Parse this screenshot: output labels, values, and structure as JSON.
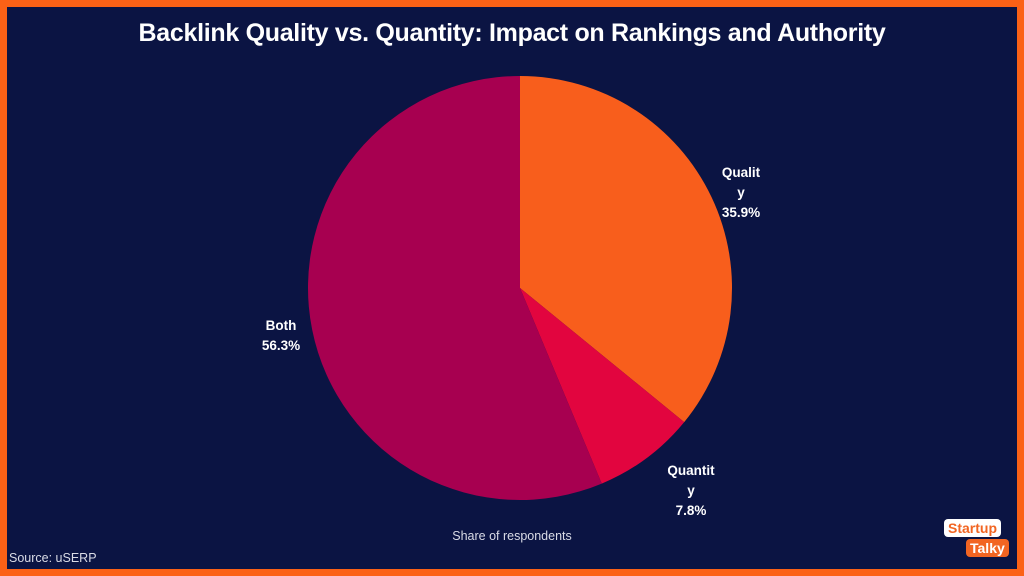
{
  "chart_data": {
    "type": "pie",
    "title": "Backlink Quality vs. Quantity: Impact on Rankings and Authority",
    "subtitle": "Share of respondents",
    "source": "Source: uSERP",
    "slices": [
      {
        "label": "Quality",
        "value": 35.9,
        "display": "35.9%",
        "color": "#f85e1c"
      },
      {
        "label": "Quantity",
        "value": 7.8,
        "display": "7.8%",
        "color": "#e2053f"
      },
      {
        "label": "Both",
        "value": 56.3,
        "display": "56.3%",
        "color": "#a70050"
      }
    ],
    "start_angle": "12 o'clock",
    "direction": "clockwise"
  },
  "colors": {
    "background": "#0b1443",
    "border": "#fb6116"
  },
  "logo": {
    "line1": "Startup",
    "line2": "Talky"
  }
}
